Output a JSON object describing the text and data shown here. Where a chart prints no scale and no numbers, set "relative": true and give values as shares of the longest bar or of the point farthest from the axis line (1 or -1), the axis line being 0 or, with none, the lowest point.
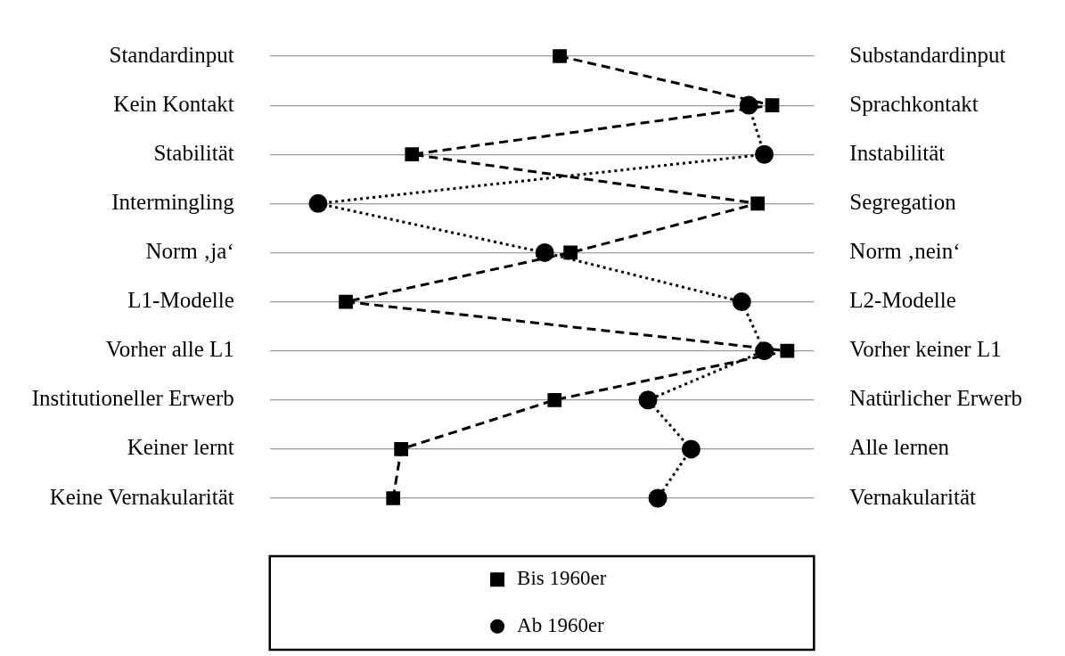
{
  "chart_data": {
    "type": "line",
    "orientation": "horizontal",
    "relative": true,
    "grid": "y",
    "legend": "bottom",
    "categories": [
      "Standardinput",
      "Kein Kontakt",
      "Stabilität",
      "Intermingling",
      "Norm ‚ja‘",
      "L1-Modelle",
      "Vorher alle L1",
      "Institutioneller Erwerb",
      "Keiner lernt",
      "Keine Vernakularität"
    ],
    "y2_categories": [
      "Substandardinput",
      "Sprachkontakt",
      "Instabilität",
      "Segregation",
      "Norm ‚nein‘",
      "L2-Modelle",
      "Vorher keiner L1",
      "Natürlicher Erwerb",
      "Alle lernen",
      "Vernakularität"
    ],
    "series": [
      {
        "name": "Bis 1960er",
        "color": "#000000",
        "marker": "square",
        "line_style": "dashed",
        "values": [
          0.515,
          0.968,
          0.2,
          0.937,
          0.538,
          0.059,
          1,
          0.504,
          0.177,
          0.16
        ]
      },
      {
        "name": "Ab 1960er",
        "color": "#000000",
        "marker": "circle",
        "line_style": "dotted",
        "values": [
          null,
          0.918,
          0.951,
          0,
          0.483,
          0.903,
          0.951,
          0.703,
          0.795,
          0.724
        ]
      }
    ]
  }
}
